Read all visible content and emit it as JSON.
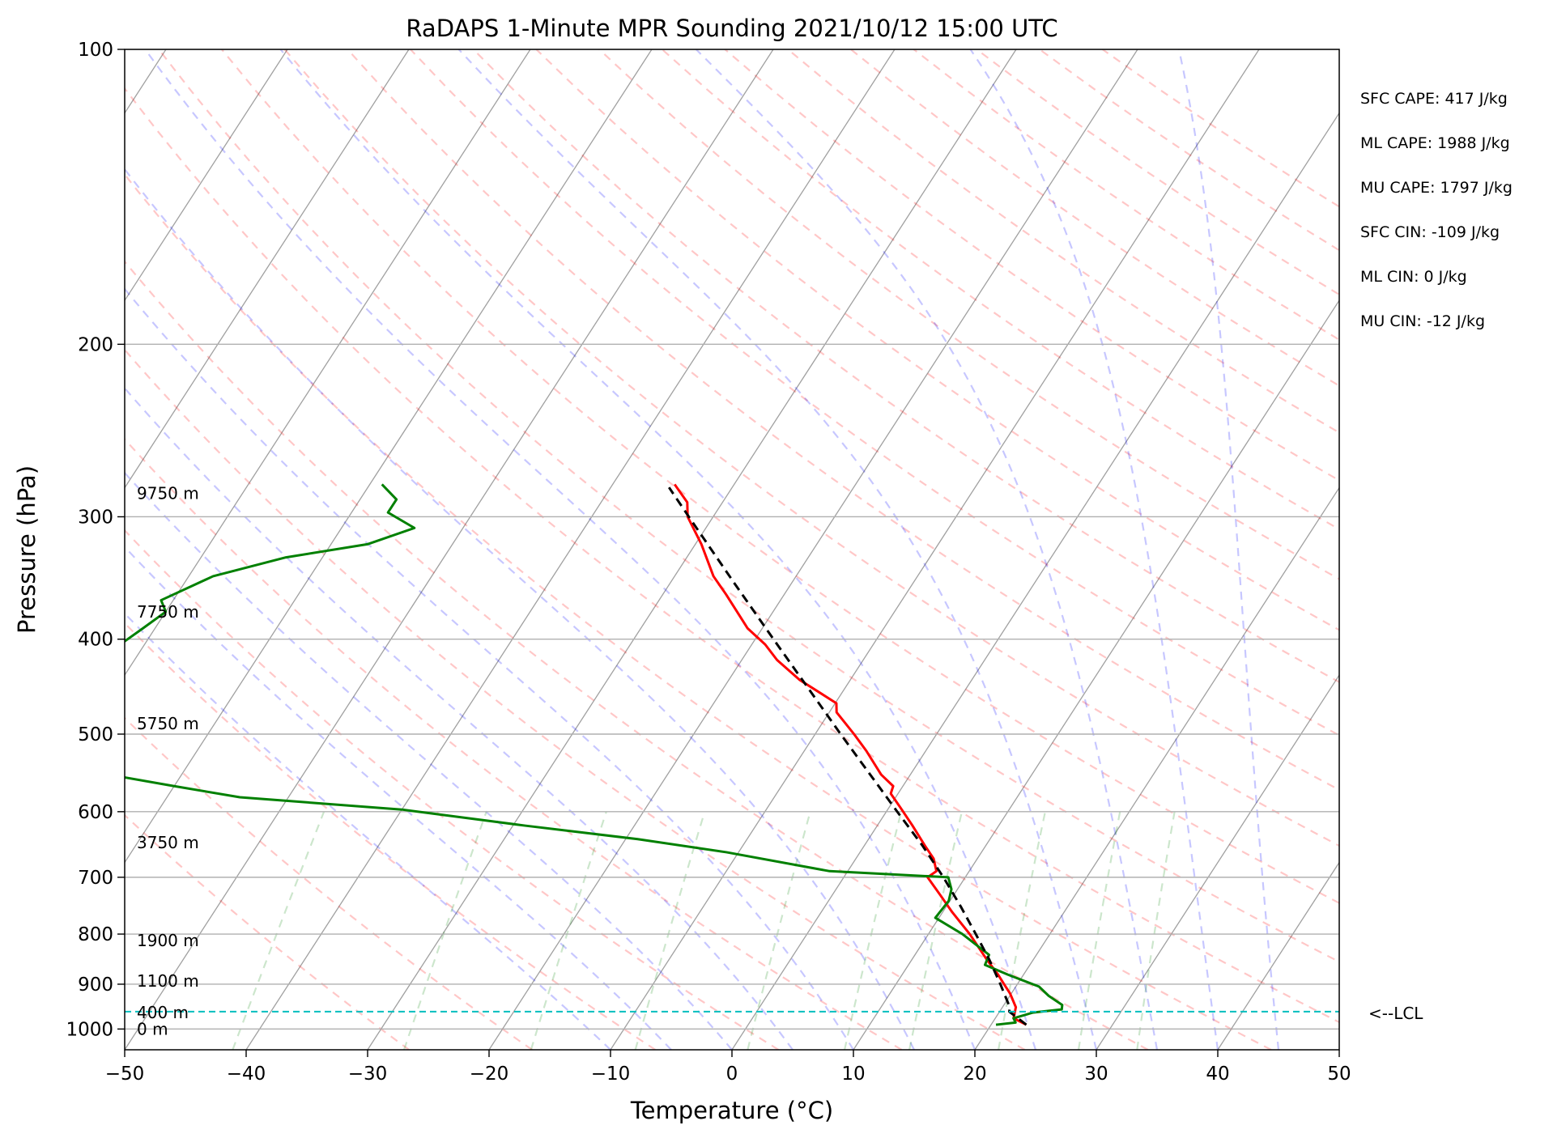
{
  "chart_data": {
    "type": "skew-t",
    "title": "RaDAPS 1-Minute MPR Sounding 2021/10/12 15:00 UTC",
    "xlabel": "Temperature (°C)",
    "ylabel": "Pressure (hPa)",
    "xlim": [
      -50,
      50
    ],
    "ylim": [
      1050,
      100
    ],
    "y_scale": "log",
    "x_ticks": [
      -50,
      -40,
      -30,
      -20,
      -10,
      0,
      10,
      20,
      30,
      40,
      50
    ],
    "x_tick_labels": [
      "−50",
      "−40",
      "−30",
      "−20",
      "−10",
      "0",
      "10",
      "20",
      "30",
      "40",
      "50"
    ],
    "y_ticks": [
      100,
      200,
      300,
      400,
      500,
      600,
      700,
      800,
      900,
      1000
    ],
    "y_tick_labels": [
      "100",
      "200",
      "300",
      "400",
      "500",
      "600",
      "700",
      "800",
      "900",
      "1000"
    ],
    "grid": true,
    "series": [
      {
        "style": "solid",
        "color": "#ff0000",
        "points": [
          {
            "p": 990,
            "t": 22.9
          },
          {
            "p": 975,
            "t": 21.5
          },
          {
            "p": 950,
            "t": 21.1
          },
          {
            "p": 920,
            "t": 19.9
          },
          {
            "p": 900,
            "t": 18.9
          },
          {
            "p": 880,
            "t": 17.9
          },
          {
            "p": 850,
            "t": 16.2
          },
          {
            "p": 800,
            "t": 13.4
          },
          {
            "p": 760,
            "t": 10.8
          },
          {
            "p": 730,
            "t": 8.9
          },
          {
            "p": 700,
            "t": 6.9
          },
          {
            "p": 690,
            "t": 7.3
          },
          {
            "p": 670,
            "t": 6.4
          },
          {
            "p": 650,
            "t": 5.0
          },
          {
            "p": 620,
            "t": 2.9
          },
          {
            "p": 595,
            "t": 1.0
          },
          {
            "p": 575,
            "t": -0.6
          },
          {
            "p": 565,
            "t": -0.8
          },
          {
            "p": 550,
            "t": -2.4
          },
          {
            "p": 520,
            "t": -4.9
          },
          {
            "p": 500,
            "t": -6.8
          },
          {
            "p": 475,
            "t": -9.4
          },
          {
            "p": 465,
            "t": -9.9
          },
          {
            "p": 440,
            "t": -14.2
          },
          {
            "p": 420,
            "t": -17.1
          },
          {
            "p": 405,
            "t": -18.9
          },
          {
            "p": 390,
            "t": -21.2
          },
          {
            "p": 360,
            "t": -24.8
          },
          {
            "p": 345,
            "t": -26.8
          },
          {
            "p": 320,
            "t": -29.5
          },
          {
            "p": 300,
            "t": -32.1
          },
          {
            "p": 290,
            "t": -32.9
          },
          {
            "p": 278,
            "t": -34.9
          }
        ]
      },
      {
        "style": "solid",
        "color": "#008000",
        "points": [
          {
            "p": 990,
            "t": 20.4
          },
          {
            "p": 985,
            "t": 21.9
          },
          {
            "p": 975,
            "t": 21.5
          },
          {
            "p": 962,
            "t": 22.8
          },
          {
            "p": 955,
            "t": 25.0
          },
          {
            "p": 945,
            "t": 24.8
          },
          {
            "p": 925,
            "t": 23.2
          },
          {
            "p": 905,
            "t": 21.9
          },
          {
            "p": 880,
            "t": 18.7
          },
          {
            "p": 860,
            "t": 16.3
          },
          {
            "p": 840,
            "t": 16.1
          },
          {
            "p": 800,
            "t": 12.8
          },
          {
            "p": 770,
            "t": 9.7
          },
          {
            "p": 740,
            "t": 9.9
          },
          {
            "p": 720,
            "t": 9.5
          },
          {
            "p": 700,
            "t": 8.6
          },
          {
            "p": 690,
            "t": -1.5
          },
          {
            "p": 660,
            "t": -11.0
          },
          {
            "p": 640,
            "t": -19.0
          },
          {
            "p": 620,
            "t": -29.0
          },
          {
            "p": 597,
            "t": -40.0
          },
          {
            "p": 580,
            "t": -54.0
          },
          {
            "p": 565,
            "t": -60.0
          },
          {
            "p": 545,
            "t": -68.0
          },
          {
            "p": 530,
            "t": -70.0
          },
          {
            "p": 510,
            "t": -73.0
          },
          {
            "p": 495,
            "t": -73.0
          },
          {
            "p": 485,
            "t": -74.0
          },
          {
            "p": 480,
            "t": -74.0
          },
          {
            "p": 465,
            "t": -73.0
          },
          {
            "p": 450,
            "t": -73.0
          },
          {
            "p": 435,
            "t": -73.0
          },
          {
            "p": 420,
            "t": -73.0
          },
          {
            "p": 405,
            "t": -72.0
          },
          {
            "p": 390,
            "t": -71.0
          },
          {
            "p": 375,
            "t": -70.0
          },
          {
            "p": 365,
            "t": -71.0
          },
          {
            "p": 345,
            "t": -68.0
          },
          {
            "p": 330,
            "t": -63.0
          },
          {
            "p": 320,
            "t": -57.0
          },
          {
            "p": 308,
            "t": -54.0
          },
          {
            "p": 297,
            "t": -57.0
          },
          {
            "p": 288,
            "t": -57.0
          },
          {
            "p": 278,
            "t": -59.0
          }
        ]
      },
      {
        "style": "dashed",
        "color": "#000000",
        "points": [
          {
            "p": 990,
            "t": 22.9
          },
          {
            "p": 960,
            "t": 20.8
          },
          {
            "p": 950,
            "t": 20.6
          },
          {
            "p": 900,
            "t": 18.6
          },
          {
            "p": 850,
            "t": 16.4
          },
          {
            "p": 800,
            "t": 13.9
          },
          {
            "p": 750,
            "t": 11.2
          },
          {
            "p": 700,
            "t": 8.2
          },
          {
            "p": 650,
            "t": 4.8
          },
          {
            "p": 600,
            "t": 0.9
          },
          {
            "p": 550,
            "t": -3.3
          },
          {
            "p": 500,
            "t": -7.9
          },
          {
            "p": 450,
            "t": -12.9
          },
          {
            "p": 400,
            "t": -18.5
          },
          {
            "p": 350,
            "t": -24.8
          },
          {
            "p": 300,
            "t": -32.0
          },
          {
            "p": 280,
            "t": -35.2
          }
        ]
      }
    ],
    "height_labels": [
      {
        "label": "0 m",
        "p": 1000
      },
      {
        "label": "400 m",
        "p": 962
      },
      {
        "label": "1100 m",
        "p": 893
      },
      {
        "label": "1900 m",
        "p": 812
      },
      {
        "label": "3750 m",
        "p": 645
      },
      {
        "label": "5750 m",
        "p": 488
      },
      {
        "label": "7750 m",
        "p": 375
      },
      {
        "label": "9750 m",
        "p": 284
      }
    ],
    "lcl": {
      "p": 960,
      "label": "<--LCL",
      "color": "#00bfbf"
    },
    "background_lines": {
      "dry_adiabats_color": "#ff0000",
      "moist_adiabats_color": "#0000ff",
      "mixing_ratio_color": "#008000",
      "isotherm_color": "#808080"
    },
    "parameters": [
      "SFC CAPE: 417 J/kg",
      "ML CAPE: 1988 J/kg",
      "MU CAPE: 1797 J/kg",
      "SFC CIN: -109 J/kg",
      "ML CIN: 0 J/kg",
      "MU CIN: -12 J/kg"
    ]
  }
}
